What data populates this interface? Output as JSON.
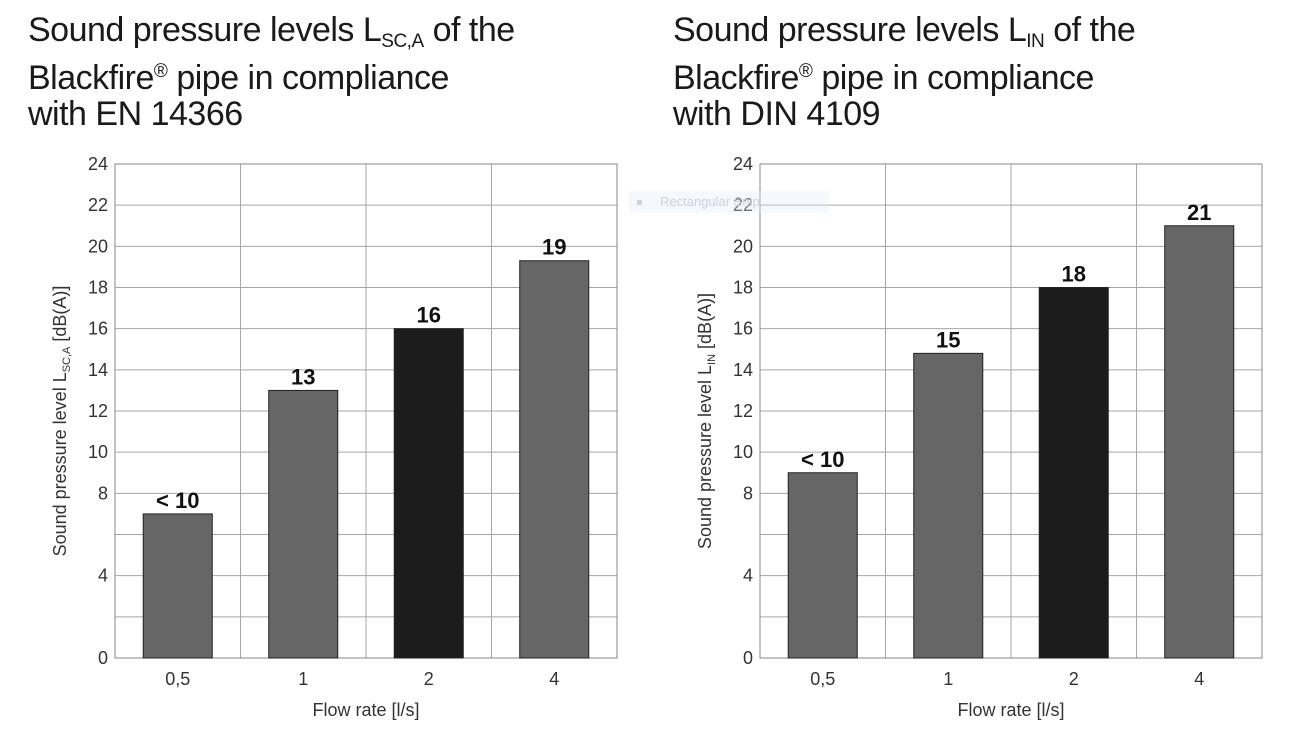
{
  "chart_data": [
    {
      "type": "bar",
      "title": {
        "main": "Sound pressure levels L",
        "sub": "SC,A",
        "line1_end": " of the",
        "line2_start": "Blackfire",
        "reg": "®",
        "line2_end": " pipe in compliance",
        "line3": "with EN 14366"
      },
      "categories": [
        "0,5",
        "1",
        "2",
        "4"
      ],
      "values": [
        7,
        13,
        16,
        19.3
      ],
      "data_labels": [
        "< 10",
        "13",
        "16",
        "19"
      ],
      "bar_colors": [
        "#666666",
        "#666666",
        "#1c1c1c",
        "#666666"
      ],
      "xlabel": "Flow rate [l/s]",
      "ylabel": {
        "main": "Sound pressure level L",
        "sub": "SC,A",
        "end": " [dB(A)]"
      },
      "yticks": [
        0,
        4,
        8,
        10,
        12,
        14,
        16,
        18,
        20,
        22,
        24
      ],
      "ylim": [
        0,
        24
      ],
      "grid": true
    },
    {
      "type": "bar",
      "title": {
        "main": "Sound pressure levels L",
        "sub": "IN",
        "line1_end": " of the",
        "line2_start": "Blackfire",
        "reg": "®",
        "line2_end": " pipe in compliance",
        "line3": "with DIN 4109"
      },
      "categories": [
        "0,5",
        "1",
        "2",
        "4"
      ],
      "values": [
        9,
        14.8,
        18,
        21
      ],
      "data_labels": [
        "< 10",
        "15",
        "18",
        "21"
      ],
      "bar_colors": [
        "#666666",
        "#666666",
        "#1c1c1c",
        "#666666"
      ],
      "xlabel": "Flow rate [l/s]",
      "ylabel": {
        "main": "Sound pressure level L",
        "sub": "IN",
        "end": " [dB(A)]"
      },
      "yticks": [
        0,
        4,
        8,
        10,
        12,
        14,
        16,
        18,
        20,
        22,
        24
      ],
      "ylim": [
        0,
        24
      ],
      "grid": true
    }
  ],
  "overlay": {
    "text": "Rectangular Snip"
  }
}
